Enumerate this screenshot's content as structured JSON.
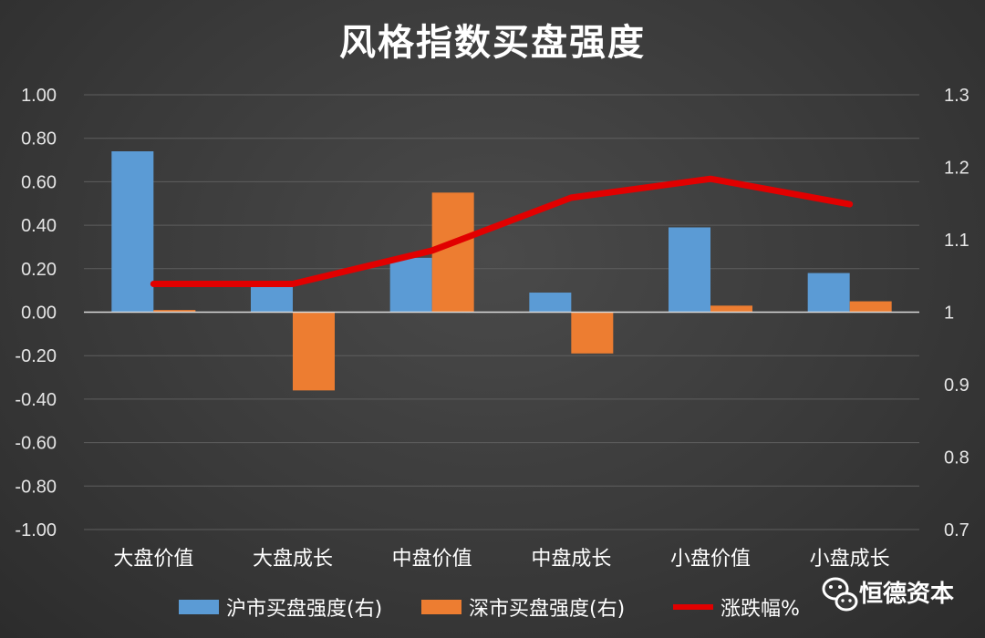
{
  "colors": {
    "series1": "#5b9bd5",
    "series2": "#ed7d31",
    "line": "#e10000",
    "grid": "#5e5e5e",
    "zero": "#d9d9d9"
  },
  "brand": {
    "name": "恒德资本",
    "icon": "wechat-icon"
  },
  "chart_data": {
    "type": "bar",
    "title": "风格指数买盘强度",
    "categories": [
      "大盘价值",
      "大盘成长",
      "中盘价值",
      "中盘成长",
      "小盘价值",
      "小盘成长"
    ],
    "y_left": {
      "min": -1.0,
      "max": 1.0,
      "step": 0.2,
      "tick_labels": [
        "1.00",
        "0.80",
        "0.60",
        "0.40",
        "0.20",
        "0.00",
        "-0.20",
        "-0.40",
        "-0.60",
        "-0.80",
        "-1.00"
      ]
    },
    "y_right": {
      "min": 0.7,
      "max": 1.3,
      "step": 0.1,
      "tick_labels": [
        "1.3",
        "1.2",
        "1.1",
        "1",
        "0.9",
        "0.8",
        "0.7"
      ]
    },
    "grid": true,
    "legend_position": "bottom",
    "series": [
      {
        "name": "沪市买盘强度(右)",
        "type": "bar",
        "axis": "left",
        "values": [
          0.74,
          0.13,
          0.25,
          0.09,
          0.39,
          0.18
        ]
      },
      {
        "name": "深市买盘强度(右)",
        "type": "bar",
        "axis": "left",
        "values": [
          0.01,
          -0.36,
          0.55,
          -0.19,
          0.03,
          0.05
        ]
      },
      {
        "name": "涨跌幅%",
        "type": "line",
        "axis": "right",
        "values": [
          1.039,
          1.039,
          1.085,
          1.158,
          1.184,
          1.149
        ]
      }
    ]
  }
}
